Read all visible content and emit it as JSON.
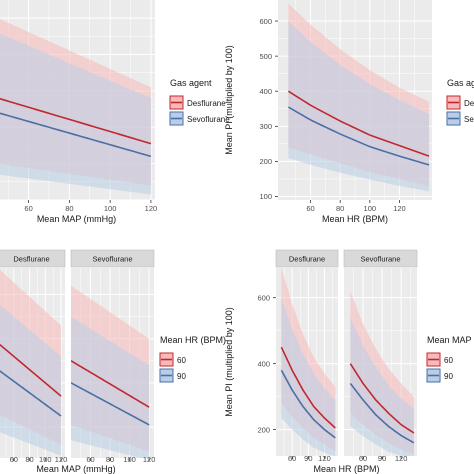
{
  "colors": {
    "panel_bg": "#ebebeb",
    "grid": "#ffffff",
    "desflurane": "#c0282e",
    "sevoflurane": "#4a6fa5",
    "desflurane_ribbon": "#f7b9b9",
    "sevoflurane_ribbon": "#b9cde6",
    "hr60": "#c0282e",
    "hr90": "#4a6fa5",
    "strip_bg": "#d9d9d9"
  },
  "chart_data": [
    {
      "type": "line",
      "id": "tl",
      "xlabel": "Mean MAP (mmHg)",
      "ylabel": "",
      "xlim": [
        45,
        122
      ],
      "ylim": [
        100,
        650
      ],
      "xticks": [
        60,
        80,
        100,
        120
      ],
      "legend": {
        "title": "Gas agent",
        "placement": "right",
        "entries": [
          "Desflurane",
          "Sevoflurane"
        ]
      },
      "series": [
        {
          "name": "Desflurane",
          "x": [
            45,
            120
          ],
          "y": [
            380,
            255
          ],
          "lower": [
            200,
            140
          ],
          "upper": [
            600,
            410
          ]
        },
        {
          "name": "Sevoflurane",
          "x": [
            45,
            120
          ],
          "y": [
            340,
            220
          ],
          "lower": [
            170,
            115
          ],
          "upper": [
            560,
            380
          ]
        }
      ]
    },
    {
      "type": "line",
      "id": "tr",
      "xlabel": "Mean HR (BPM)",
      "ylabel": "Mean PI (multiplied by 100)",
      "xlim": [
        38,
        142
      ],
      "ylim": [
        90,
        660
      ],
      "yticks": [
        100,
        200,
        300,
        400,
        500,
        600
      ],
      "xticks": [
        60,
        80,
        100,
        120
      ],
      "legend": {
        "title": "Gas agent",
        "placement": "right",
        "entries": [
          "Desflurane",
          "Sevoflurane"
        ]
      },
      "series": [
        {
          "name": "Desflurane",
          "x": [
            45,
            60,
            80,
            100,
            120,
            140
          ],
          "y": [
            400,
            360,
            315,
            275,
            245,
            215
          ],
          "lower": [
            240,
            220,
            195,
            170,
            150,
            130
          ],
          "upper": [
            650,
            590,
            520,
            460,
            410,
            370
          ]
        },
        {
          "name": "Sevoflurane",
          "x": [
            45,
            60,
            80,
            100,
            120,
            140
          ],
          "y": [
            355,
            318,
            278,
            242,
            215,
            190
          ],
          "lower": [
            210,
            190,
            168,
            148,
            130,
            115
          ],
          "upper": [
            600,
            540,
            475,
            420,
            375,
            335
          ]
        }
      ]
    },
    {
      "type": "line",
      "id": "bl",
      "xlabel": "Mean MAP (mmHg)",
      "ylabel": "",
      "facets": [
        "Desflurane",
        "Sevoflurane"
      ],
      "xlim": [
        40,
        125
      ],
      "ylim": [
        130,
        560
      ],
      "xticks": [
        60,
        80,
        100,
        120
      ],
      "legend": {
        "title": "Mean HR (BPM)",
        "placement": "right",
        "entries": [
          "60",
          "90"
        ]
      },
      "panels": [
        {
          "facet": "Desflurane",
          "series": [
            {
              "name": "60",
              "x": [
                40,
                120
              ],
              "y": [
                390,
                270
              ],
              "lower": [
                230,
                160
              ],
              "upper": [
                560,
                430
              ]
            },
            {
              "name": "90",
              "x": [
                40,
                120
              ],
              "y": [
                330,
                225
              ],
              "lower": [
                190,
                135
              ],
              "upper": [
                480,
                360
              ]
            }
          ]
        },
        {
          "facet": "Sevoflurane",
          "series": [
            {
              "name": "60",
              "x": [
                40,
                120
              ],
              "y": [
                350,
                245
              ],
              "lower": [
                205,
                145
              ],
              "upper": [
                520,
                400
              ]
            },
            {
              "name": "90",
              "x": [
                40,
                120
              ],
              "y": [
                300,
                205
              ],
              "lower": [
                170,
                125
              ],
              "upper": [
                450,
                340
              ]
            }
          ]
        }
      ]
    },
    {
      "type": "line",
      "id": "br",
      "xlabel": "Mean HR (BPM)",
      "ylabel": "Mean PI (multiplied by 100)",
      "facets": [
        "Desflurane",
        "Sevoflurane"
      ],
      "xlim": [
        30,
        145
      ],
      "ylim": [
        120,
        690
      ],
      "yticks": [
        200,
        400,
        600
      ],
      "xticks": [
        60,
        90,
        120
      ],
      "legend": {
        "title": "Mean MAP",
        "placement": "right",
        "entries": [
          "60",
          "90"
        ]
      },
      "panels": [
        {
          "facet": "Desflurane",
          "series": [
            {
              "name": "60",
              "x": [
                40,
                60,
                80,
                100,
                120,
                140
              ],
              "y": [
                450,
                380,
                320,
                270,
                235,
                205
              ],
              "lower": [
                280,
                240,
                205,
                175,
                155,
                135
              ],
              "upper": [
                690,
                580,
                490,
                420,
                370,
                330
              ]
            },
            {
              "name": "90",
              "x": [
                40,
                60,
                80,
                100,
                120,
                140
              ],
              "y": [
                380,
                320,
                270,
                230,
                200,
                175
              ],
              "lower": [
                235,
                200,
                170,
                145,
                130,
                118
              ],
              "upper": [
                600,
                505,
                430,
                370,
                325,
                290
              ]
            }
          ]
        },
        {
          "facet": "Sevoflurane",
          "series": [
            {
              "name": "60",
              "x": [
                40,
                60,
                80,
                100,
                120,
                140
              ],
              "y": [
                400,
                340,
                290,
                250,
                215,
                190
              ],
              "lower": [
                250,
                215,
                185,
                160,
                140,
                125
              ],
              "upper": [
                620,
                520,
                445,
                385,
                340,
                300
              ]
            },
            {
              "name": "90",
              "x": [
                40,
                60,
                80,
                100,
                120,
                140
              ],
              "y": [
                340,
                290,
                245,
                210,
                182,
                160
              ],
              "lower": [
                210,
                180,
                155,
                133,
                120,
                110
              ],
              "upper": [
                540,
                455,
                390,
                335,
                295,
                262
              ]
            }
          ]
        }
      ]
    }
  ]
}
